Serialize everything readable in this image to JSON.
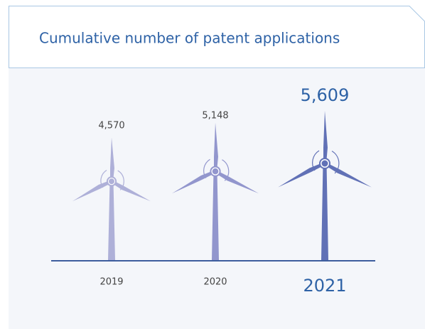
{
  "chart_data": {
    "type": "bar",
    "title": "Cumulative number of patent applications",
    "categories": [
      "2019",
      "2020",
      "2021"
    ],
    "values": [
      4570,
      5148,
      5609
    ],
    "value_labels": [
      "4,570",
      "5,148",
      "5,609"
    ],
    "colors": [
      "#aeb0d8",
      "#9296cd",
      "#6171b6"
    ]
  }
}
